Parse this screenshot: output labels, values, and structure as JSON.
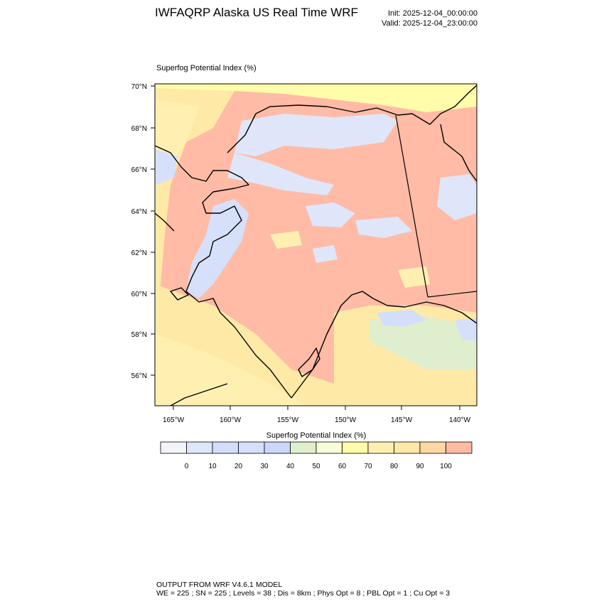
{
  "header": {
    "title": "IWFAQRP Alaska US Real Time WRF",
    "init": "Init: 2025-12-04_00:00:00",
    "valid": "Valid: 2025-12-04_23:00:00"
  },
  "map": {
    "field_label": "Superfog Potential Index   (%)",
    "lat_labels": [
      "70°N",
      "68°N",
      "66°N",
      "64°N",
      "62°N",
      "60°N",
      "58°N",
      "56°N"
    ],
    "lon_labels": [
      "165°W",
      "160°W",
      "155°W",
      "150°W",
      "145°W",
      "140°W"
    ]
  },
  "colorbar": {
    "title": "Superfog Potential Index  (%)",
    "colors": [
      "#f2f4f8",
      "#dfe6fa",
      "#d3dffa",
      "#d6e0fb",
      "#ccd6fb",
      "#dfeecc",
      "#f6fdd8",
      "#fffdaa",
      "#fff0b2",
      "#ffe9a6",
      "#ffd7a5",
      "#ffbba6"
    ],
    "labels": [
      "0",
      "10",
      "20",
      "30",
      "40",
      "50",
      "60",
      "70",
      "80",
      "90",
      "100"
    ]
  },
  "footer": {
    "line1": "OUTPUT FROM WRF V4.6.1 MODEL",
    "line2": "WE = 225 ; SN = 225 ; Levels = 38 ; Dis = 8km ; Phys Opt = 8 ; PBL Opt = 1 ; Cu Opt = 3"
  }
}
